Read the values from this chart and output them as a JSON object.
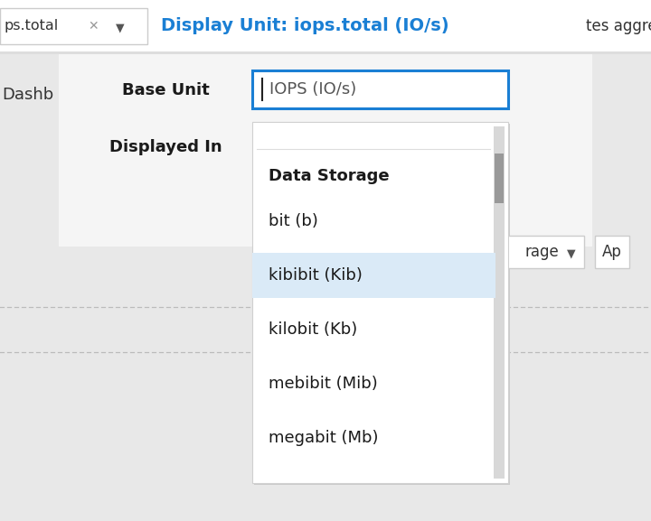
{
  "bg_color": "#e8e8e8",
  "title_text": "Display Unit: iops.total (IO/s)",
  "title_color": "#1a7fd4",
  "tab_text": "ps.total",
  "base_unit_label": "Base Unit",
  "base_unit_input": "IOPS (IO/s)",
  "displayed_in_label": "Displayed In",
  "dropdown_header": "Data Storage",
  "dropdown_items": [
    "bit (b)",
    "kibibit (Kib)",
    "kilobit (Kb)",
    "mebibit (Mib)",
    "megabit (Mb)"
  ],
  "selected_item": "kibibit (Kib)",
  "selected_bg": "#daeaf7",
  "right_partial_text1": "Dashb",
  "right_partial_text2": "tes aggre",
  "right_dropdown_text": "rage",
  "right_button_text": "Ap",
  "input_border_color": "#1a7fd4",
  "scrollbar_thumb_color": "#999999",
  "scrollbar_track_color": "#d8d8d8",
  "dropdown_bg": "#ffffff",
  "panel_bg": "#f0f0f0",
  "topbar_bg": "#ffffff",
  "tab_bg": "#ffffff",
  "tab_border": "#cccccc",
  "white_panel_bg": "#f5f5f5",
  "shadow_color": "#cccccc"
}
